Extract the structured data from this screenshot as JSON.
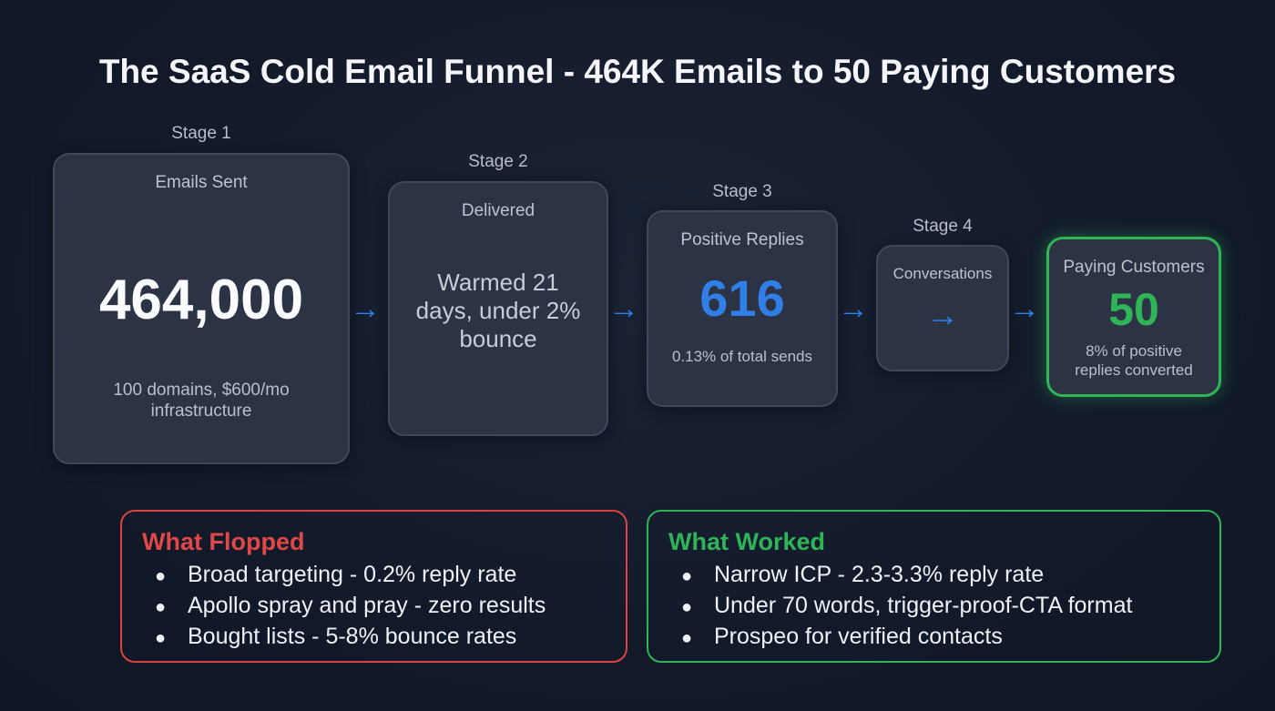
{
  "title": "The SaaS Cold Email Funnel - 464K Emails to 50 Paying Customers",
  "stages": [
    {
      "stage_label": "Stage 1",
      "heading": "Emails Sent",
      "value": "464,000",
      "note": "100 domains, $600/mo infrastructure"
    },
    {
      "stage_label": "Stage 2",
      "heading": "Delivered",
      "note": "Warmed 21 days, under 2% bounce"
    },
    {
      "stage_label": "Stage 3",
      "heading": "Positive Replies",
      "value": "616",
      "note": "0.13% of total sends"
    },
    {
      "stage_label": "Stage 4",
      "heading": "Conversations",
      "inner_arrow": "→"
    },
    {
      "heading": "Paying Customers",
      "value": "50",
      "note": "8% of positive replies converted"
    }
  ],
  "arrow": "→",
  "flopped": {
    "title": "What Flopped",
    "items": [
      "Broad targeting - 0.2% reply rate",
      "Apollo spray and pray - zero results",
      "Bought lists - 5-8% bounce rates"
    ]
  },
  "worked": {
    "title": "What Worked",
    "items": [
      "Narrow ICP - 2.3-3.3% reply rate",
      "Under 70 words, trigger-proof-CTA format",
      "Prospeo for verified contacts"
    ]
  },
  "bullet": "●",
  "colors": {
    "blue": "#2f7fe6",
    "green": "#2fb457",
    "red": "#e04848"
  }
}
